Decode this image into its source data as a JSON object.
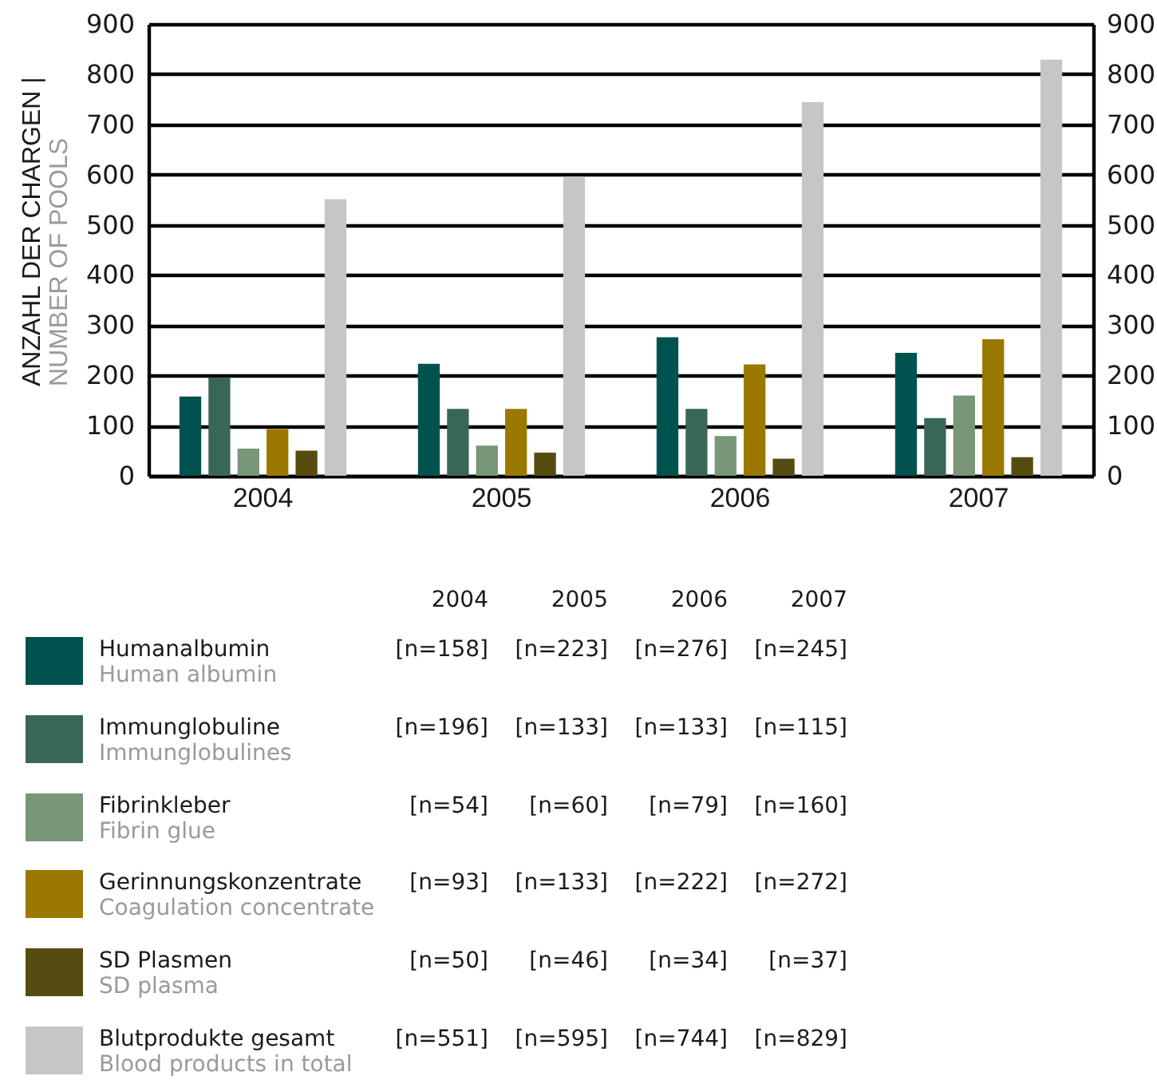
{
  "chart_data": {
    "type": "bar",
    "categories": [
      "2004",
      "2005",
      "2006",
      "2007"
    ],
    "ylabel": "ANZAHL DER CHARGEN |\nNUMBER OF POOLS",
    "series": [
      {
        "name": "Humanalbumin\nHuman albumin",
        "color": "#00524f",
        "values": [
          158,
          223,
          276,
          245
        ]
      },
      {
        "name": "Immunglobuline\nImmunglobulines",
        "color": "#386755",
        "values": [
          196,
          133,
          133,
          115
        ]
      },
      {
        "name": "Fibrinkleber\nFibrin glue",
        "color": "#799678",
        "values": [
          54,
          60,
          79,
          160
        ]
      },
      {
        "name": "Gerinnungskonzentrate\nCoagulation concentrate",
        "color": "#9b7800",
        "values": [
          93,
          133,
          222,
          272
        ]
      },
      {
        "name": "SD Plasmen\nSD plasma",
        "color": "#564c0f",
        "values": [
          50,
          46,
          34,
          37
        ]
      },
      {
        "name": "Blutprodukte gesamt\nBlood products in total",
        "color": "#c5c6c8",
        "values": [
          551,
          595,
          744,
          829
        ]
      }
    ],
    "annotations": [
      "[n=158]",
      "[n=223]",
      "[n=276]",
      "[n=245]",
      "[n=196]",
      "[n=133]",
      "[n=133]",
      "[n=115]",
      "[n=54]",
      "[n=60]",
      "[n=79]",
      "[n=160]",
      "[n=93]",
      "[n=133]",
      "[n=222]",
      "[n=272]",
      "[n=50]",
      "[n=46]",
      "[n=34]",
      "[n=37]",
      "[n=551]",
      "[n=595]",
      "[n=744]",
      "[n=829]"
    ],
    "ylim": [
      0,
      900
    ],
    "yticks": [
      0,
      100,
      200,
      300,
      400,
      500,
      600,
      700,
      800,
      900
    ],
    "y2lim": [
      0,
      900
    ],
    "y2ticks": [
      0,
      100,
      200,
      300,
      400,
      500,
      600,
      700,
      800,
      900
    ],
    "grid": "y",
    "legend": "bottom"
  }
}
